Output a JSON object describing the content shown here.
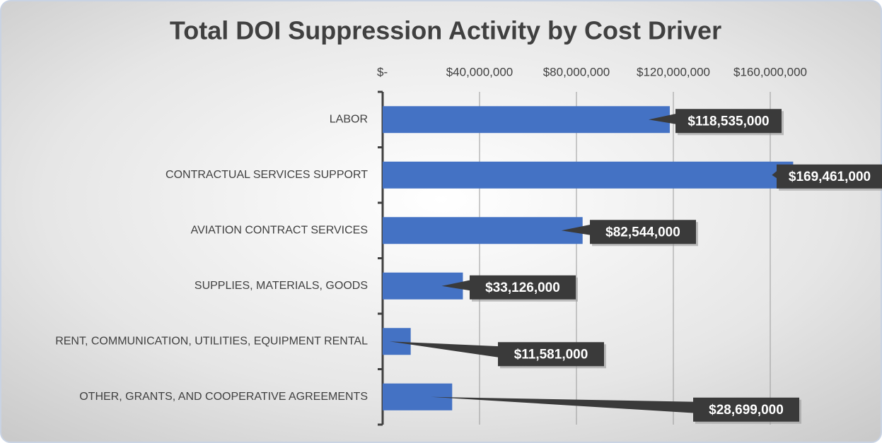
{
  "chart_data": {
    "type": "bar",
    "orientation": "horizontal",
    "title": "Total DOI Suppression Activity by Cost Driver",
    "categories": [
      "LABOR",
      "CONTRACTUAL SERVICES SUPPORT",
      "AVIATION CONTRACT SERVICES",
      "SUPPLIES, MATERIALS, GOODS",
      "RENT, COMMUNICATION, UTILITIES, EQUIPMENT RENTAL",
      "OTHER, GRANTS, AND COOPERATIVE AGREEMENTS"
    ],
    "values": [
      118535000,
      169461000,
      82544000,
      33126000,
      11581000,
      28699000
    ],
    "value_labels": [
      "$118,535,000",
      "$169,461,000",
      "$82,544,000",
      "$33,126,000",
      "$11,581,000",
      "$28,699,000"
    ],
    "color": "#4472c4",
    "xlim": [
      0,
      180000000
    ],
    "xticks": [
      {
        "value": 0,
        "label": "$-"
      },
      {
        "value": 40000000,
        "label": "$40,000,000"
      },
      {
        "value": 80000000,
        "label": "$80,000,000"
      },
      {
        "value": 120000000,
        "label": "$120,000,000"
      },
      {
        "value": 160000000,
        "label": "$160,000,000"
      }
    ],
    "grid": true
  }
}
